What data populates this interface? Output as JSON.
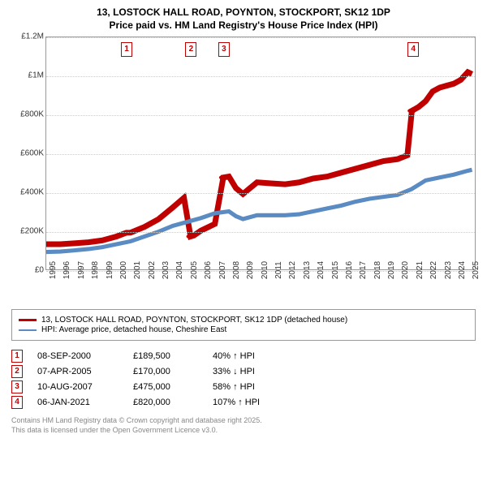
{
  "title_line1": "13, LOSTOCK HALL ROAD, POYNTON, STOCKPORT, SK12 1DP",
  "title_line2": "Price paid vs. HM Land Registry's House Price Index (HPI)",
  "chart": {
    "type": "line",
    "ylim": [
      0,
      1200000
    ],
    "yticks": [
      0,
      200000,
      400000,
      600000,
      800000,
      1000000,
      1200000
    ],
    "ytick_labels": [
      "£0",
      "£200K",
      "£400K",
      "£600K",
      "£800K",
      "£1M",
      "£1.2M"
    ],
    "xlim": [
      1995,
      2025.5
    ],
    "xticks": [
      1995,
      1996,
      1997,
      1998,
      1999,
      2000,
      2001,
      2002,
      2003,
      2004,
      2005,
      2006,
      2007,
      2008,
      2009,
      2010,
      2011,
      2012,
      2013,
      2014,
      2015,
      2016,
      2017,
      2018,
      2019,
      2020,
      2021,
      2022,
      2023,
      2024,
      2025
    ],
    "background_color": "#ffffff",
    "grid_color": "#dddddd",
    "series": [
      {
        "name": "price_paid",
        "color": "#c00000",
        "width": 2.2,
        "data": [
          [
            1995,
            130000
          ],
          [
            1996,
            130000
          ],
          [
            1997,
            135000
          ],
          [
            1998,
            140000
          ],
          [
            1999,
            150000
          ],
          [
            2000,
            170000
          ],
          [
            2000.7,
            189500
          ],
          [
            2001,
            190000
          ],
          [
            2002,
            220000
          ],
          [
            2003,
            260000
          ],
          [
            2004,
            320000
          ],
          [
            2004.8,
            370000
          ],
          [
            2005.27,
            170000
          ],
          [
            2005.5,
            175000
          ],
          [
            2006,
            200000
          ],
          [
            2007,
            235000
          ],
          [
            2007.6,
            475000
          ],
          [
            2008,
            480000
          ],
          [
            2008.5,
            420000
          ],
          [
            2009,
            390000
          ],
          [
            2009.5,
            420000
          ],
          [
            2010,
            450000
          ],
          [
            2011,
            445000
          ],
          [
            2012,
            440000
          ],
          [
            2013,
            450000
          ],
          [
            2014,
            470000
          ],
          [
            2015,
            480000
          ],
          [
            2016,
            500000
          ],
          [
            2017,
            520000
          ],
          [
            2018,
            540000
          ],
          [
            2019,
            560000
          ],
          [
            2020,
            570000
          ],
          [
            2020.7,
            590000
          ],
          [
            2021.02,
            820000
          ],
          [
            2021.5,
            840000
          ],
          [
            2022,
            870000
          ],
          [
            2022.5,
            920000
          ],
          [
            2023,
            940000
          ],
          [
            2023.5,
            950000
          ],
          [
            2024,
            960000
          ],
          [
            2024.5,
            980000
          ],
          [
            2025,
            1020000
          ],
          [
            2025.3,
            1010000
          ]
        ],
        "markers_at": [
          [
            2000.7,
            189500
          ],
          [
            2005.27,
            170000
          ],
          [
            2007.6,
            475000
          ],
          [
            2021.02,
            820000
          ]
        ]
      },
      {
        "name": "hpi",
        "color": "#5b8bc3",
        "width": 1.6,
        "data": [
          [
            1995,
            90000
          ],
          [
            1996,
            92000
          ],
          [
            1997,
            98000
          ],
          [
            1998,
            105000
          ],
          [
            1999,
            115000
          ],
          [
            2000,
            130000
          ],
          [
            2001,
            145000
          ],
          [
            2002,
            170000
          ],
          [
            2003,
            195000
          ],
          [
            2004,
            225000
          ],
          [
            2005,
            245000
          ],
          [
            2006,
            265000
          ],
          [
            2007,
            290000
          ],
          [
            2008,
            300000
          ],
          [
            2008.5,
            275000
          ],
          [
            2009,
            260000
          ],
          [
            2010,
            280000
          ],
          [
            2011,
            280000
          ],
          [
            2012,
            280000
          ],
          [
            2013,
            285000
          ],
          [
            2014,
            300000
          ],
          [
            2015,
            315000
          ],
          [
            2016,
            330000
          ],
          [
            2017,
            350000
          ],
          [
            2018,
            365000
          ],
          [
            2019,
            375000
          ],
          [
            2020,
            385000
          ],
          [
            2021,
            415000
          ],
          [
            2022,
            460000
          ],
          [
            2023,
            475000
          ],
          [
            2024,
            490000
          ],
          [
            2025,
            510000
          ],
          [
            2025.3,
            515000
          ]
        ]
      }
    ],
    "marker_labels": [
      "1",
      "2",
      "3",
      "4"
    ],
    "marker_box_color": "#c00000"
  },
  "legend": [
    {
      "color": "#c00000",
      "label": "13, LOSTOCK HALL ROAD, POYNTON, STOCKPORT, SK12 1DP (detached house)"
    },
    {
      "color": "#5b8bc3",
      "label": "HPI: Average price, detached house, Cheshire East"
    }
  ],
  "sales": [
    {
      "idx": "1",
      "date": "08-SEP-2000",
      "price": "£189,500",
      "delta": "40% ↑ HPI"
    },
    {
      "idx": "2",
      "date": "07-APR-2005",
      "price": "£170,000",
      "delta": "33% ↓ HPI"
    },
    {
      "idx": "3",
      "date": "10-AUG-2007",
      "price": "£475,000",
      "delta": "58% ↑ HPI"
    },
    {
      "idx": "4",
      "date": "06-JAN-2021",
      "price": "£820,000",
      "delta": "107% ↑ HPI"
    }
  ],
  "attribution_line1": "Contains HM Land Registry data © Crown copyright and database right 2025.",
  "attribution_line2": "This data is licensed under the Open Government Licence v3.0."
}
